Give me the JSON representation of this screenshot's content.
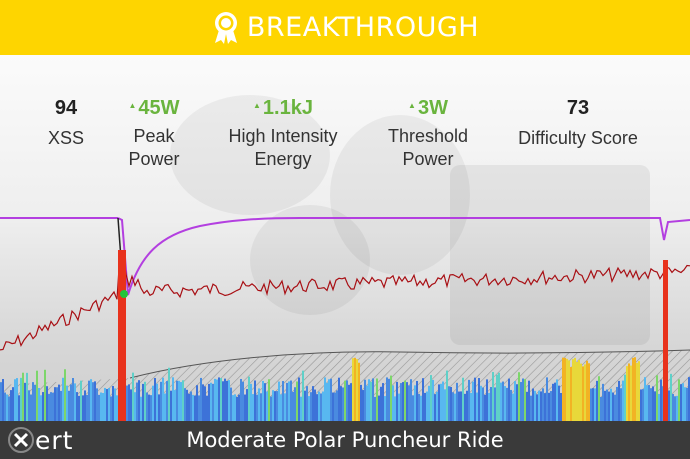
{
  "banner": {
    "title": "BREAKTHROUGH",
    "icon": "award-ribbon-icon",
    "color": "#fed500"
  },
  "stats": [
    {
      "value": "94",
      "label_lines": [
        "XSS"
      ],
      "improved": false
    },
    {
      "value": "45W",
      "label_lines": [
        "Peak",
        "Power"
      ],
      "improved": true
    },
    {
      "value": "1.1kJ",
      "label_lines": [
        "High Intensity",
        "Energy"
      ],
      "improved": true
    },
    {
      "value": "3W",
      "label_lines": [
        "Threshold",
        "Power"
      ],
      "improved": true
    },
    {
      "value": "73",
      "label_lines": [
        "Difficulty Score"
      ],
      "improved": false
    }
  ],
  "colors": {
    "improved": "#6ab43e",
    "power_line": "#a80f14",
    "fitness_line": "#b33fe0",
    "breakthrough_bar": "#e8321c",
    "breakthrough_point": "#22c43a"
  },
  "footer": {
    "logo_text": "ert",
    "logo_icon": "xert-x-icon",
    "title": "Moderate Polar Puncheur Ride"
  }
}
